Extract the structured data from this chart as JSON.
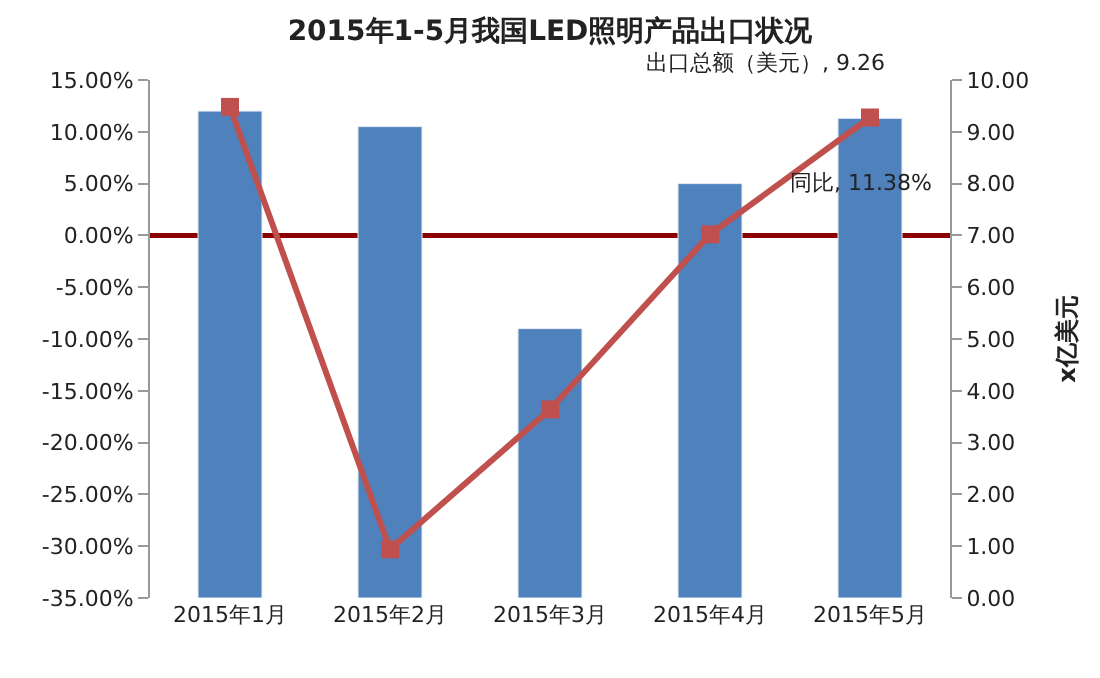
{
  "chart_data": {
    "type": "bar",
    "title": "2015年1-5月我国LED照明产品出口状况",
    "y2label": "x亿美元",
    "categories": [
      "2015年1月",
      "2015年2月",
      "2015年3月",
      "2015年4月",
      "2015年5月"
    ],
    "series": [
      {
        "axis": "y2",
        "color": "#4f81bd",
        "values": [
          9.4,
          9.1,
          5.2,
          8.0,
          9.26
        ]
      },
      {
        "type": "line",
        "axis": "y",
        "color": "#c0504d",
        "marker": "square",
        "values": [
          12.4,
          -30.3,
          -16.8,
          0.1,
          11.38
        ]
      }
    ],
    "ylim": [
      -35,
      15
    ],
    "yticks": [
      {
        "value": -35,
        "label": "-35.00%"
      },
      {
        "value": -30,
        "label": "-30.00%"
      },
      {
        "value": -25,
        "label": "-25.00%"
      },
      {
        "value": -20,
        "label": "-20.00%"
      },
      {
        "value": -15,
        "label": "-15.00%"
      },
      {
        "value": -10,
        "label": "-10.00%"
      },
      {
        "value": -5,
        "label": "-5.00%"
      },
      {
        "value": 0,
        "label": "0.00%"
      },
      {
        "value": 5,
        "label": "5.00%"
      },
      {
        "value": 10,
        "label": "10.00%"
      },
      {
        "value": 15,
        "label": "15.00%"
      }
    ],
    "y2lim": [
      0,
      10
    ],
    "y2ticks": [
      {
        "value": 0,
        "label": "0.00"
      },
      {
        "value": 1,
        "label": "1.00"
      },
      {
        "value": 2,
        "label": "2.00"
      },
      {
        "value": 3,
        "label": "3.00"
      },
      {
        "value": 4,
        "label": "4.00"
      },
      {
        "value": 5,
        "label": "5.00"
      },
      {
        "value": 6,
        "label": "6.00"
      },
      {
        "value": 7,
        "label": "7.00"
      },
      {
        "value": 8,
        "label": "8.00"
      },
      {
        "value": 9,
        "label": "9.00"
      },
      {
        "value": 10,
        "label": "10.00"
      }
    ],
    "ref_lines": [
      {
        "axis": "y",
        "value": 0,
        "label": null,
        "color": "#8b0000"
      }
    ],
    "annotations": [
      "出口总额（美元）, 9.26",
      "同比, 11.38%"
    ],
    "grid": false
  }
}
